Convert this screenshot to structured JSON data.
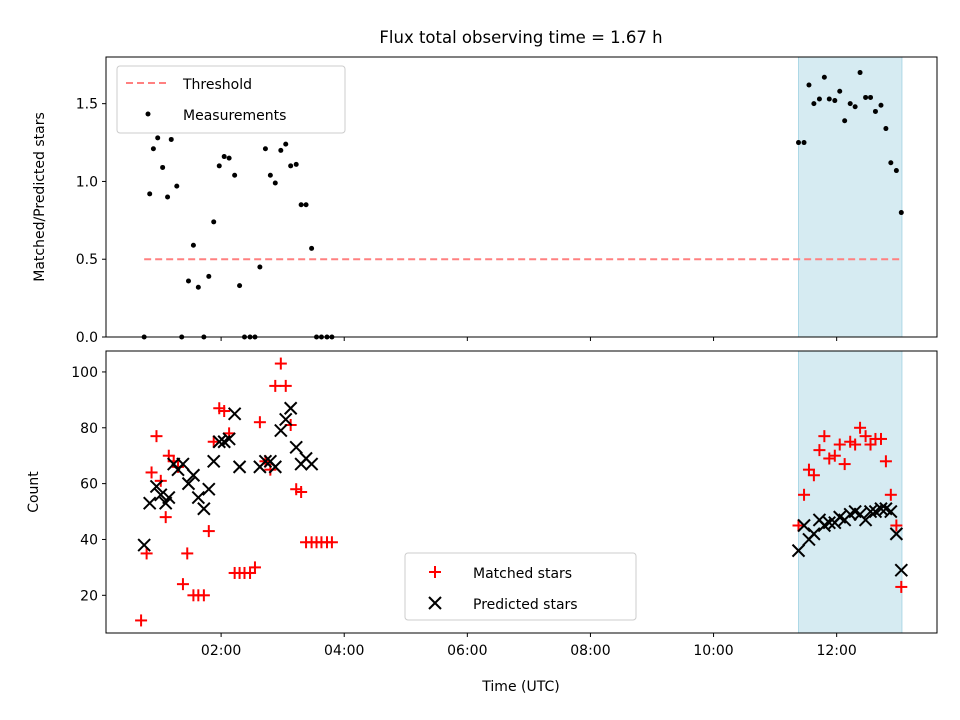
{
  "title": "Flux total observing time = 1.67 h",
  "xlabel": "Time (UTC)",
  "x_tick_labels": [
    "02:00",
    "04:00",
    "06:00",
    "08:00",
    "10:00",
    "12:00"
  ],
  "shade_color": "#add8e6",
  "chart_data": [
    {
      "type": "scatter",
      "ylabel": "Matched/Predicted stars",
      "xlim": [
        0.13,
        13.63
      ],
      "ylim": [
        0,
        1.8
      ],
      "y_ticks": [
        0.0,
        0.5,
        1.0,
        1.5
      ],
      "y_tick_labels": [
        "0.0",
        "0.5",
        "1.0",
        "1.5"
      ],
      "x_ticks": [
        2,
        4,
        6,
        8,
        10,
        12
      ],
      "shaded_region": [
        11.38,
        13.06
      ],
      "legend": {
        "placement": "top-left",
        "entries": [
          "Threshold",
          "Measurements"
        ]
      },
      "threshold": {
        "name": "Threshold",
        "y": 0.5,
        "x_range": [
          0.75,
          13.06
        ],
        "color": "#ff8080"
      },
      "series": [
        {
          "name": "Measurements",
          "marker": "dot",
          "color": "#000000",
          "x": [
            0.75,
            0.84,
            0.9,
            0.97,
            1.05,
            1.13,
            1.19,
            1.28,
            1.36,
            1.47,
            1.55,
            1.63,
            1.72,
            1.8,
            1.88,
            1.97,
            2.05,
            2.13,
            2.22,
            2.3,
            2.38,
            2.47,
            2.55,
            2.63,
            2.72,
            2.8,
            2.88,
            2.97,
            3.05,
            3.13,
            3.22,
            3.3,
            3.38,
            3.47,
            3.55,
            3.63,
            3.72,
            3.8,
            11.38,
            11.47,
            11.55,
            11.63,
            11.72,
            11.8,
            11.88,
            11.97,
            12.05,
            12.13,
            12.22,
            12.3,
            12.38,
            12.47,
            12.55,
            12.63,
            12.72,
            12.8,
            12.88,
            12.97,
            13.05
          ],
          "y": [
            0.0,
            0.92,
            1.21,
            1.28,
            1.09,
            0.9,
            1.27,
            0.97,
            0.0,
            0.36,
            0.59,
            0.32,
            0.0,
            0.39,
            0.74,
            1.1,
            1.16,
            1.15,
            1.04,
            0.33,
            0.0,
            0.0,
            0.0,
            0.45,
            1.21,
            1.04,
            0.99,
            1.2,
            1.24,
            1.1,
            1.11,
            0.85,
            0.85,
            0.57,
            0.0,
            0.0,
            0.0,
            0.0,
            1.25,
            1.25,
            1.62,
            1.5,
            1.53,
            1.67,
            1.53,
            1.52,
            1.58,
            1.39,
            1.5,
            1.48,
            1.7,
            1.54,
            1.54,
            1.45,
            1.49,
            1.34,
            1.12,
            1.07,
            0.8
          ]
        }
      ]
    },
    {
      "type": "scatter",
      "ylabel": "Count",
      "xlim": [
        0.13,
        13.63
      ],
      "ylim": [
        6.5,
        107.5
      ],
      "y_ticks": [
        20,
        40,
        60,
        80,
        100
      ],
      "y_tick_labels": [
        "20",
        "40",
        "60",
        "80",
        "100"
      ],
      "x_ticks": [
        2,
        4,
        6,
        8,
        10,
        12
      ],
      "shaded_region": [
        11.38,
        13.06
      ],
      "legend": {
        "placement": "lower center",
        "entries": [
          "Matched stars",
          "Predicted stars"
        ]
      },
      "series": [
        {
          "name": "Matched stars",
          "marker": "plus",
          "color": "#ff0000",
          "x": [
            0.7,
            0.79,
            0.87,
            0.95,
            1.02,
            1.1,
            1.15,
            1.23,
            1.3,
            1.38,
            1.45,
            1.55,
            1.63,
            1.72,
            1.8,
            1.88,
            1.97,
            2.05,
            2.13,
            2.22,
            2.3,
            2.38,
            2.47,
            2.55,
            2.63,
            2.72,
            2.8,
            2.88,
            2.97,
            3.05,
            3.13,
            3.22,
            3.3,
            3.38,
            3.47,
            3.55,
            3.63,
            3.72,
            3.8,
            11.38,
            11.47,
            11.55,
            11.63,
            11.72,
            11.8,
            11.88,
            11.97,
            12.05,
            12.13,
            12.22,
            12.3,
            12.38,
            12.47,
            12.55,
            12.63,
            12.72,
            12.8,
            12.88,
            12.97,
            13.05
          ],
          "y": [
            11,
            35,
            64,
            77,
            61,
            48,
            70,
            68,
            66,
            24,
            35,
            20,
            20,
            20,
            43,
            75,
            87,
            86,
            78,
            28,
            28,
            28,
            28,
            30,
            82,
            68,
            65,
            95,
            103,
            95,
            81,
            58,
            57,
            39,
            39,
            39,
            39,
            39,
            39,
            45,
            56,
            65,
            63,
            72,
            77,
            69,
            70,
            74,
            67,
            75,
            74,
            80,
            77,
            74,
            76,
            76,
            68,
            56,
            45,
            23
          ]
        },
        {
          "name": "Predicted stars",
          "marker": "x",
          "color": "#000000",
          "x": [
            0.75,
            0.84,
            0.95,
            1.02,
            1.1,
            1.15,
            1.23,
            1.3,
            1.38,
            1.47,
            1.55,
            1.63,
            1.72,
            1.8,
            1.88,
            1.97,
            2.05,
            2.13,
            2.22,
            2.3,
            2.63,
            2.72,
            2.8,
            2.88,
            2.97,
            3.05,
            3.13,
            3.22,
            3.3,
            3.38,
            3.47,
            11.38,
            11.47,
            11.55,
            11.63,
            11.72,
            11.8,
            11.88,
            11.97,
            12.05,
            12.13,
            12.22,
            12.3,
            12.38,
            12.47,
            12.55,
            12.63,
            12.72,
            12.8,
            12.88,
            12.97,
            13.05
          ],
          "y": [
            38,
            53,
            59,
            56,
            53,
            55,
            67,
            65,
            67,
            60,
            63,
            55,
            51,
            58,
            68,
            75,
            75,
            76,
            85,
            66,
            66,
            68,
            68,
            66,
            79,
            83,
            87,
            73,
            67,
            69,
            67,
            36,
            45,
            40,
            42,
            47,
            45,
            46,
            46,
            48,
            47,
            49,
            50,
            49,
            47,
            50,
            50,
            51,
            51,
            50,
            42,
            29
          ]
        }
      ]
    }
  ]
}
